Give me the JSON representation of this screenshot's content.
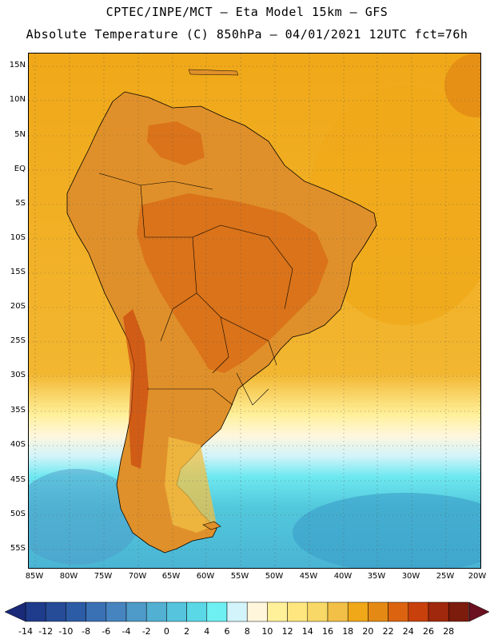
{
  "header": {
    "title_line1": "CPTEC/INPE/MCT —  Eta Model 15km — GFS",
    "title_line2": "Absolute Temperature (C) 850hPa — 04/01/2021 12UTC fct=76h"
  },
  "map": {
    "lat_labels": [
      "15N",
      "10N",
      "5N",
      "EQ",
      "5S",
      "10S",
      "15S",
      "20S",
      "25S",
      "30S",
      "35S",
      "40S",
      "45S",
      "50S",
      "55S"
    ],
    "lon_labels": [
      "85W",
      "80W",
      "75W",
      "70W",
      "65W",
      "60W",
      "55W",
      "50W",
      "45W",
      "40W",
      "35W",
      "30W",
      "25W",
      "20W"
    ],
    "land_color": "#d97e20",
    "ocean_warm_color": "#f0a818",
    "ocean_cold_color": "#4ec8dc"
  },
  "colorbar": {
    "labels": [
      "-14",
      "-12",
      "-10",
      "-8",
      "-6",
      "-4",
      "-2",
      "0",
      "2",
      "4",
      "6",
      "8",
      "10",
      "12",
      "14",
      "16",
      "18",
      "20",
      "22",
      "24",
      "26",
      "28"
    ],
    "colors": [
      "#1f3c8c",
      "#264c98",
      "#2d5ca6",
      "#3a70b4",
      "#4684bf",
      "#4e9ac8",
      "#52b0d2",
      "#56c4dc",
      "#5ad8e6",
      "#6ef0f2",
      "#d2f4fa",
      "#fff6dc",
      "#fff09a",
      "#ffe67e",
      "#f8d866",
      "#f2c046",
      "#f0a818",
      "#e48a14",
      "#dc6410",
      "#c8400c",
      "#a0280c",
      "#7c1c0c"
    ],
    "end_left_color": "#1a2a78",
    "end_right_color": "#6a1020"
  }
}
